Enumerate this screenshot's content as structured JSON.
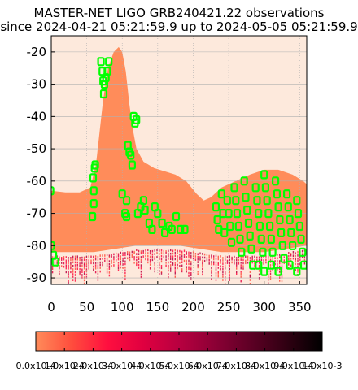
{
  "chart_data": {
    "type": "heatmap",
    "title_lines": [
      "MASTER-NET LIGO GRB240421.22 observations",
      "since 2024-04-21 05:21:59.9 up to 2024-05-05 05:21:59.9"
    ],
    "xlabel": "",
    "ylabel": "",
    "xlim": [
      0,
      360
    ],
    "ylim": [
      -92,
      -15
    ],
    "x_ticks": [
      0,
      50,
      100,
      150,
      200,
      250,
      300,
      350
    ],
    "y_ticks": [
      -20,
      -30,
      -40,
      -50,
      -60,
      -70,
      -80,
      -90
    ],
    "grid": true,
    "colorbar": {
      "min": 0.0,
      "max": 0.001,
      "tick_labels": [
        "0.0x10-4",
        "1.0x10-4",
        "2.0x10-4",
        "3.0x10-4",
        "4.0x10-4",
        "5.0x10-4",
        "6.0x10-4",
        "7.0x10-4",
        "8.0x10-4",
        "9.0x10-4",
        "1.0x10-3"
      ],
      "colors": [
        "#ff8c5a",
        "#ff4d3d",
        "#ff0f3f",
        "#e00040",
        "#b80040",
        "#8c0035",
        "#5e0025",
        "#300012",
        "#000000"
      ]
    },
    "background_color": "#fde9dc",
    "probability_region": {
      "upper_boundary": [
        [
          0,
          -63
        ],
        [
          20,
          -63.5
        ],
        [
          40,
          -63.5
        ],
        [
          55,
          -62
        ],
        [
          63,
          -55
        ],
        [
          68,
          -45
        ],
        [
          73,
          -35
        ],
        [
          80,
          -25
        ],
        [
          88,
          -20
        ],
        [
          95,
          -18.5
        ],
        [
          100,
          -20
        ],
        [
          105,
          -26
        ],
        [
          110,
          -36
        ],
        [
          115,
          -44
        ],
        [
          120,
          -50
        ],
        [
          130,
          -54
        ],
        [
          145,
          -56
        ],
        [
          160,
          -57
        ],
        [
          175,
          -58
        ],
        [
          190,
          -60
        ],
        [
          205,
          -64
        ],
        [
          215,
          -66
        ],
        [
          225,
          -65
        ],
        [
          240,
          -62
        ],
        [
          260,
          -60
        ],
        [
          280,
          -58
        ],
        [
          300,
          -56.5
        ],
        [
          320,
          -56.5
        ],
        [
          340,
          -58
        ],
        [
          355,
          -60
        ],
        [
          360,
          -61
        ]
      ],
      "lower_boundary": [
        [
          0,
          -82
        ],
        [
          60,
          -82
        ],
        [
          120,
          -80
        ],
        [
          180,
          -80
        ],
        [
          240,
          -82
        ],
        [
          300,
          -82
        ],
        [
          360,
          -80
        ]
      ]
    },
    "observed_fields": [
      [
        -1,
        -63
      ],
      [
        0,
        -80
      ],
      [
        3,
        -83
      ],
      [
        6,
        -85
      ],
      [
        59,
        -59
      ],
      [
        60,
        -63
      ],
      [
        61,
        -56
      ],
      [
        62,
        -55
      ],
      [
        60,
        -67
      ],
      [
        58,
        -71
      ],
      [
        73,
        -29
      ],
      [
        75,
        -30
      ],
      [
        77,
        -28
      ],
      [
        79,
        -26
      ],
      [
        81,
        -23
      ],
      [
        72,
        -26
      ],
      [
        70,
        -23
      ],
      [
        74,
        -33
      ],
      [
        100,
        -64
      ],
      [
        106,
        -66
      ],
      [
        104,
        -70
      ],
      [
        106,
        -71
      ],
      [
        108,
        -49
      ],
      [
        110,
        -51
      ],
      [
        112,
        -52
      ],
      [
        114,
        -55
      ],
      [
        116,
        -40
      ],
      [
        118,
        -42
      ],
      [
        120,
        -41
      ],
      [
        122,
        -70
      ],
      [
        126,
        -68
      ],
      [
        130,
        -66
      ],
      [
        132,
        -69
      ],
      [
        138,
        -73
      ],
      [
        142,
        -75
      ],
      [
        146,
        -68
      ],
      [
        150,
        -70
      ],
      [
        156,
        -73
      ],
      [
        160,
        -76
      ],
      [
        166,
        -74
      ],
      [
        170,
        -75
      ],
      [
        176,
        -71
      ],
      [
        182,
        -75
      ],
      [
        188,
        -75
      ],
      [
        232,
        -68
      ],
      [
        234,
        -72
      ],
      [
        236,
        -75
      ],
      [
        240,
        -64
      ],
      [
        242,
        -70
      ],
      [
        244,
        -76
      ],
      [
        248,
        -66
      ],
      [
        250,
        -70
      ],
      [
        252,
        -74
      ],
      [
        254,
        -79
      ],
      [
        258,
        -62
      ],
      [
        260,
        -66
      ],
      [
        262,
        -70
      ],
      [
        264,
        -74
      ],
      [
        266,
        -78
      ],
      [
        268,
        -82
      ],
      [
        272,
        -60
      ],
      [
        274,
        -65
      ],
      [
        276,
        -69
      ],
      [
        278,
        -73
      ],
      [
        280,
        -77
      ],
      [
        282,
        -81
      ],
      [
        284,
        -86
      ],
      [
        288,
        -62
      ],
      [
        290,
        -66
      ],
      [
        292,
        -70
      ],
      [
        294,
        -74
      ],
      [
        296,
        -78
      ],
      [
        298,
        -82
      ],
      [
        300,
        -58
      ],
      [
        302,
        -62
      ],
      [
        304,
        -66
      ],
      [
        306,
        -70
      ],
      [
        308,
        -74
      ],
      [
        310,
        -78
      ],
      [
        312,
        -82
      ],
      [
        316,
        -60
      ],
      [
        318,
        -64
      ],
      [
        320,
        -68
      ],
      [
        322,
        -72
      ],
      [
        324,
        -76
      ],
      [
        326,
        -80
      ],
      [
        328,
        -84
      ],
      [
        332,
        -64
      ],
      [
        334,
        -68
      ],
      [
        336,
        -72
      ],
      [
        338,
        -76
      ],
      [
        340,
        -80
      ],
      [
        346,
        -66
      ],
      [
        348,
        -70
      ],
      [
        350,
        -74
      ],
      [
        352,
        -78
      ],
      [
        354,
        -82
      ],
      [
        356,
        -86
      ],
      [
        292,
        -86
      ],
      [
        300,
        -88
      ],
      [
        310,
        -86
      ],
      [
        320,
        -88
      ],
      [
        336,
        -86
      ],
      [
        346,
        -88
      ]
    ],
    "observed_field_color": "#00ff00"
  }
}
